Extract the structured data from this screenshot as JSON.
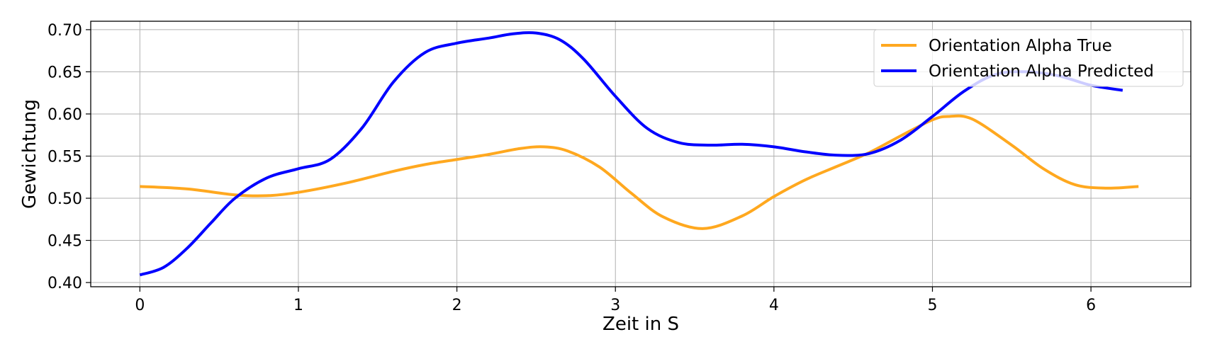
{
  "chart_data": {
    "type": "line",
    "title": "",
    "xlabel": "Zeit in S",
    "ylabel": "Gewichtung",
    "xlim": [
      -0.31,
      6.63
    ],
    "ylim": [
      0.395,
      0.71
    ],
    "xticks": [
      0,
      1,
      2,
      3,
      4,
      5,
      6
    ],
    "xtick_labels": [
      "0",
      "1",
      "2",
      "3",
      "4",
      "5",
      "6"
    ],
    "yticks": [
      0.4,
      0.45,
      0.5,
      0.55,
      0.6,
      0.65,
      0.7
    ],
    "ytick_labels": [
      "0.40",
      "0.45",
      "0.50",
      "0.55",
      "0.60",
      "0.65",
      "0.70"
    ],
    "grid": true,
    "legend_position": "top-right",
    "series": [
      {
        "name": "Orientation Alpha True",
        "color": "#FFA81F",
        "x": [
          0,
          0.3,
          0.6,
          0.8,
          1.0,
          1.3,
          1.6,
          1.8,
          2.0,
          2.2,
          2.4,
          2.55,
          2.7,
          2.9,
          3.1,
          3.3,
          3.55,
          3.8,
          4.0,
          4.2,
          4.4,
          4.6,
          4.8,
          5.0,
          5.1,
          5.25,
          5.5,
          5.7,
          5.9,
          6.1,
          6.3
        ],
        "values": [
          0.514,
          0.511,
          0.504,
          0.503,
          0.507,
          0.518,
          0.532,
          0.54,
          0.546,
          0.552,
          0.559,
          0.561,
          0.556,
          0.537,
          0.506,
          0.478,
          0.464,
          0.479,
          0.502,
          0.522,
          0.538,
          0.554,
          0.574,
          0.593,
          0.597,
          0.594,
          0.563,
          0.535,
          0.516,
          0.512,
          0.514
        ]
      },
      {
        "name": "Orientation Alpha Predicted",
        "color": "#0000FF",
        "x": [
          0,
          0.15,
          0.3,
          0.45,
          0.6,
          0.8,
          1.0,
          1.2,
          1.4,
          1.6,
          1.8,
          2.0,
          2.2,
          2.35,
          2.5,
          2.65,
          2.8,
          3.0,
          3.2,
          3.4,
          3.6,
          3.8,
          4.0,
          4.2,
          4.4,
          4.6,
          4.8,
          5.0,
          5.2,
          5.4,
          5.6,
          5.8,
          6.0,
          6.2
        ],
        "values": [
          0.409,
          0.418,
          0.441,
          0.471,
          0.5,
          0.524,
          0.535,
          0.546,
          0.583,
          0.638,
          0.673,
          0.684,
          0.69,
          0.695,
          0.696,
          0.688,
          0.665,
          0.621,
          0.583,
          0.566,
          0.563,
          0.564,
          0.561,
          0.555,
          0.551,
          0.553,
          0.569,
          0.597,
          0.627,
          0.647,
          0.65,
          0.645,
          0.634,
          0.628
        ]
      }
    ]
  }
}
